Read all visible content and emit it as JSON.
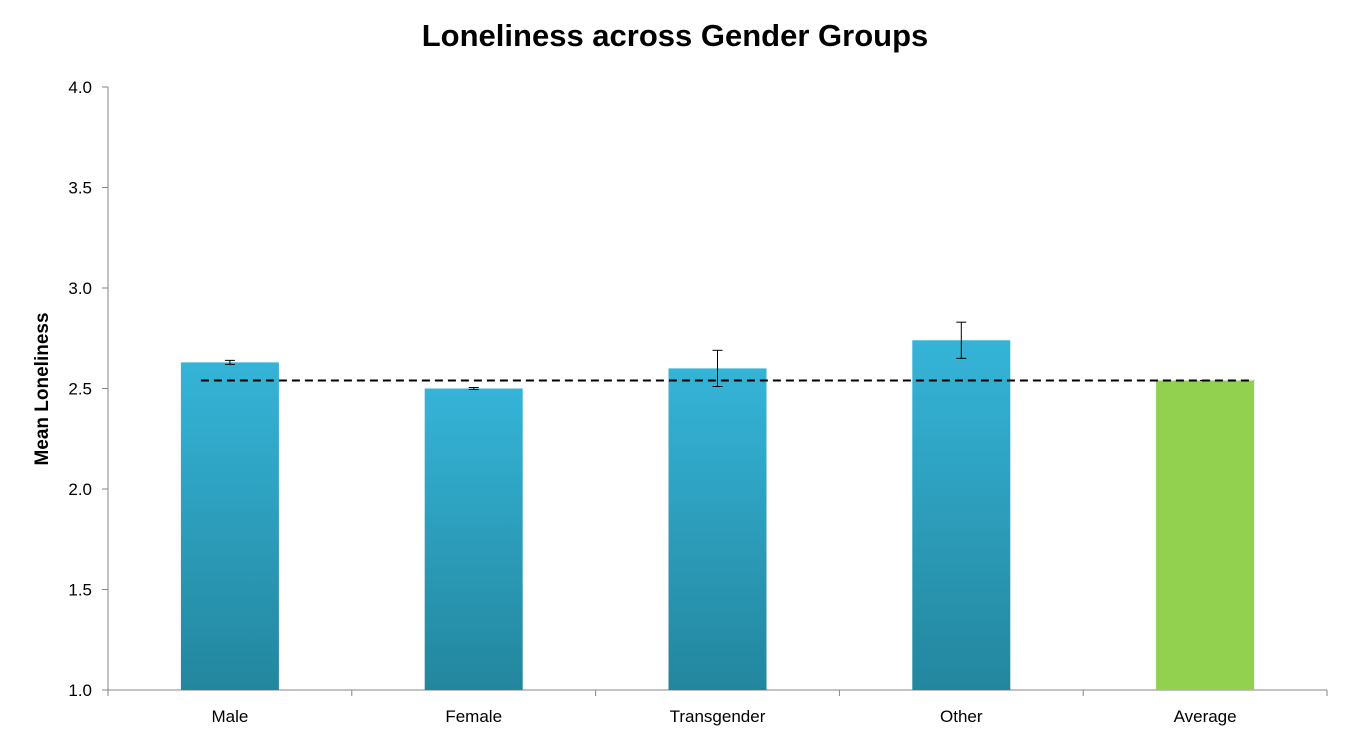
{
  "chart_data": {
    "type": "bar",
    "title": "Loneliness across Gender Groups",
    "xlabel": "",
    "ylabel": "Mean Loneliness",
    "categories": [
      "Male",
      "Female",
      "Transgender",
      "Other",
      "Average"
    ],
    "values": [
      2.63,
      2.5,
      2.6,
      2.74,
      2.54
    ],
    "error": [
      0.01,
      0.005,
      0.09,
      0.09,
      0.0
    ],
    "ylim": [
      1.0,
      4.0
    ],
    "yticks": [
      "1.0",
      "1.5",
      "2.0",
      "2.5",
      "3.0",
      "3.5",
      "4.0"
    ],
    "reference_line": {
      "value": 2.54,
      "style": "dashed"
    },
    "colors": {
      "bar_top": "#35b4d8",
      "bar_bottom": "#23869e",
      "average_bar": "#92d050",
      "axis": "#868686",
      "reference_line": "#000000"
    },
    "grid": false,
    "legend": "none"
  }
}
